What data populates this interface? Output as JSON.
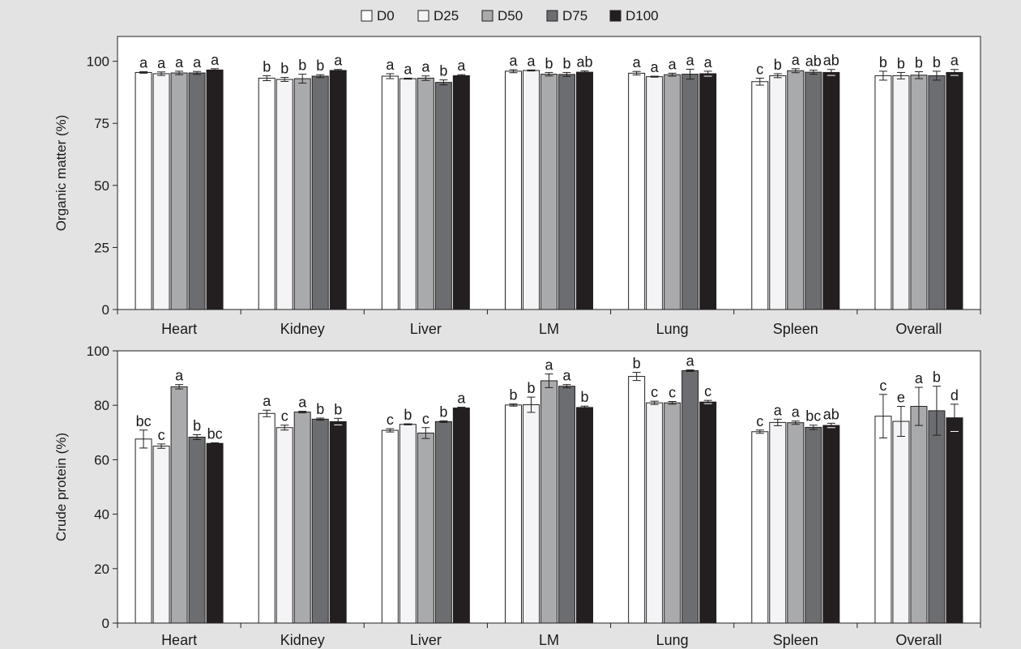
{
  "legend": [
    {
      "name": "D0",
      "color": "#ffffff"
    },
    {
      "name": "D25",
      "color": "#f4f4f6"
    },
    {
      "name": "D50",
      "color": "#a9aaac"
    },
    {
      "name": "D75",
      "color": "#6c6d70"
    },
    {
      "name": "D100",
      "color": "#231f20"
    }
  ],
  "chart_data": [
    {
      "type": "bar",
      "ylabel": "Organic matter (%)",
      "ylim": [
        0,
        110
      ],
      "yticks": [
        0,
        25,
        50,
        75,
        100
      ],
      "legend_position": "top-center",
      "grid": false,
      "categories": [
        "Heart",
        "Kidney",
        "Liver",
        "LM",
        "Lung",
        "Spleen",
        "Overall"
      ],
      "series": [
        {
          "name": "D0",
          "values": [
            95.5,
            93.2,
            94.0,
            96.0,
            95.2,
            91.8,
            94.2
          ],
          "errors": [
            0.3,
            1.0,
            1.0,
            0.6,
            0.7,
            1.4,
            1.8
          ],
          "labels": [
            "a",
            "b",
            "a",
            "a",
            "a",
            "c",
            "b"
          ]
        },
        {
          "name": "D25",
          "values": [
            95.0,
            92.7,
            93.0,
            96.3,
            93.8,
            94.2,
            94.2
          ],
          "errors": [
            0.7,
            0.8,
            0.2,
            0.2,
            0.2,
            0.8,
            1.3
          ],
          "labels": [
            "a",
            "b",
            "a",
            "a",
            "a",
            "b",
            "b"
          ]
        },
        {
          "name": "D50",
          "values": [
            95.3,
            93.0,
            93.2,
            94.8,
            94.6,
            96.2,
            94.4
          ],
          "errors": [
            0.7,
            1.8,
            0.9,
            0.7,
            0.6,
            0.8,
            1.4
          ],
          "labels": [
            "a",
            "b",
            "a",
            "b",
            "a",
            "a",
            "b"
          ]
        },
        {
          "name": "D75",
          "values": [
            95.3,
            94.0,
            91.5,
            94.7,
            94.8,
            95.6,
            94.2
          ],
          "errors": [
            0.6,
            0.6,
            1.0,
            0.8,
            2.0,
            0.8,
            1.8
          ],
          "labels": [
            "a",
            "b",
            "b",
            "b",
            "a",
            "ab",
            "b"
          ]
        },
        {
          "name": "D100",
          "values": [
            96.5,
            96.3,
            94.2,
            95.6,
            95.0,
            95.5,
            95.5
          ],
          "errors": [
            0.5,
            0.4,
            0.4,
            0.5,
            1.0,
            1.2,
            1.2
          ],
          "labels": [
            "a",
            "a",
            "a",
            "ab",
            "a",
            "ab",
            "a"
          ]
        }
      ]
    },
    {
      "type": "bar",
      "ylabel": "Crude protein (%)",
      "ylim": [
        0,
        100
      ],
      "yticks": [
        0,
        20,
        40,
        60,
        80,
        100
      ],
      "grid": false,
      "categories": [
        "Heart",
        "Kidney",
        "Liver",
        "LM",
        "Lung",
        "Spleen",
        "Overall"
      ],
      "series": [
        {
          "name": "D0",
          "values": [
            67.6,
            77.0,
            70.8,
            80.1,
            90.6,
            70.3,
            76.0
          ],
          "errors": [
            3.3,
            1.2,
            0.6,
            0.4,
            1.5,
            0.6,
            8.0
          ],
          "labels": [
            "bc",
            "a",
            "c",
            "b",
            "b",
            "c",
            "c"
          ]
        },
        {
          "name": "D25",
          "values": [
            65.0,
            71.8,
            73.0,
            80.2,
            80.9,
            73.7,
            74.1
          ],
          "errors": [
            0.8,
            0.9,
            0.2,
            2.8,
            0.6,
            1.2,
            5.5
          ],
          "labels": [
            "c",
            "c",
            "b",
            "b",
            "c",
            "a",
            "e"
          ]
        },
        {
          "name": "D50",
          "values": [
            86.8,
            77.5,
            69.8,
            89.0,
            80.9,
            73.6,
            79.6
          ],
          "errors": [
            0.8,
            0.3,
            2.0,
            2.5,
            0.5,
            0.6,
            7.0
          ],
          "labels": [
            "a",
            "a",
            "c",
            "a",
            "c",
            "a",
            "a"
          ]
        },
        {
          "name": "D75",
          "values": [
            68.3,
            74.9,
            74.0,
            87.0,
            92.7,
            71.9,
            78.0
          ],
          "errors": [
            0.9,
            0.4,
            0.3,
            0.6,
            0.3,
            0.8,
            9.0
          ],
          "labels": [
            "b",
            "b",
            "b",
            "a",
            "a",
            "bc",
            "b"
          ]
        },
        {
          "name": "D100",
          "values": [
            66.0,
            74.0,
            79.0,
            79.2,
            81.2,
            72.6,
            75.4
          ],
          "errors": [
            0.2,
            1.2,
            0.3,
            0.5,
            0.6,
            0.8,
            5.0
          ],
          "labels": [
            "bc",
            "b",
            "a",
            "b",
            "c",
            "ab",
            "d"
          ]
        }
      ]
    }
  ]
}
